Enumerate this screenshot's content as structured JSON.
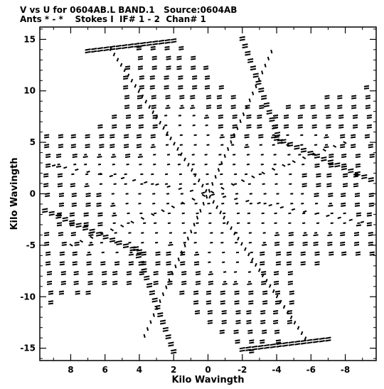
{
  "header": {
    "line1": "V vs U for 0604AB.L BAND.1   Source:0604AB",
    "line2": "Ants * - *    Stokes I  IF# 1 - 2  Chan# 1"
  },
  "chart_data": {
    "type": "scatter",
    "title": "V vs U for 0604AB.L BAND.1   Source:0604AB",
    "subtitle": "Ants * - *    Stokes I  IF# 1 - 2  Chan# 1",
    "xlabel": "Kilo Wavingth",
    "ylabel": "Kilo Wavingth",
    "xlim": [
      9.8,
      -9.8
    ],
    "ylim": [
      -16.2,
      16.2
    ],
    "x_ticks": [
      8,
      6,
      4,
      2,
      0,
      -2,
      -4,
      -6,
      -8
    ],
    "y_ticks": [
      15,
      10,
      5,
      0,
      -5,
      -10,
      -15
    ],
    "x_reversed": true,
    "grid": false,
    "marker_color": "#000000",
    "star_arms": {
      "arm_angles_deg": [
        17,
        68,
        105,
        148
      ],
      "arm_extent_kilo_wavelength": [
        9.6,
        15.5,
        14.5,
        10.0
      ],
      "description": "six-pointed star sampling of the UV plane"
    },
    "uv_tracks": [
      {
        "name": "track-1",
        "start": [
          7.0,
          14.0
        ],
        "end": [
          2.0,
          15.0
        ]
      },
      {
        "name": "track-2",
        "start": [
          -2.0,
          15.2
        ],
        "end": [
          -4.2,
          5.2
        ]
      },
      {
        "name": "track-3",
        "start": [
          -4.0,
          5.5
        ],
        "end": [
          -9.5,
          1.5
        ]
      },
      {
        "name": "track-4",
        "start": [
          -7.0,
          -14.0
        ],
        "end": [
          -2.0,
          -15.0
        ]
      },
      {
        "name": "track-5",
        "start": [
          2.0,
          -15.2
        ],
        "end": [
          4.2,
          -5.2
        ]
      },
      {
        "name": "track-6",
        "start": [
          4.0,
          -5.5
        ],
        "end": [
          9.5,
          -1.5
        ]
      }
    ]
  }
}
